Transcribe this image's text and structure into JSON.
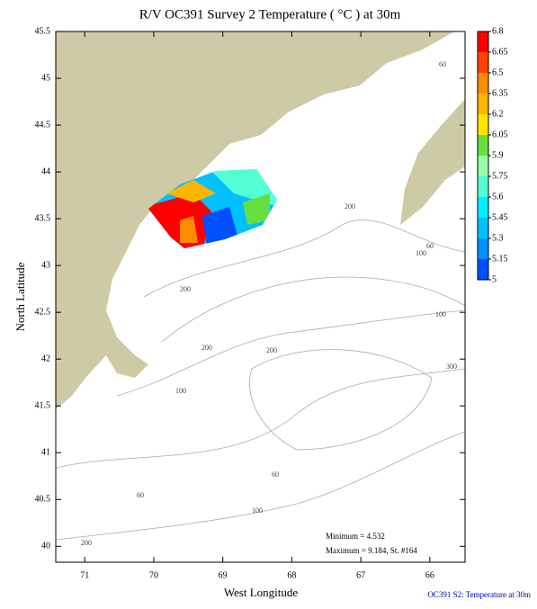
{
  "chart_data": {
    "type": "map",
    "title": "R/V OC391 Survey 2 Temperature ( °C ) at 30m",
    "xlabel": "West Longitude",
    "ylabel": "North Latitude",
    "xlim": [
      71.42,
      65.49
    ],
    "xticks": [
      71,
      70,
      69,
      68,
      67,
      66
    ],
    "ylim": [
      39.83,
      45.5
    ],
    "yticks": [
      40,
      40.5,
      41,
      41.5,
      42,
      42.5,
      43,
      43.5,
      44,
      44.5,
      45,
      45.5
    ],
    "colorbar": {
      "ticks": [
        6.8,
        6.65,
        6.5,
        6.35,
        6.2,
        6.05,
        5.9,
        5.75,
        5.6,
        5.45,
        5.3,
        5.15,
        5
      ],
      "colors": [
        "#ff0000",
        "#ff4400",
        "#ff8c00",
        "#ffb400",
        "#ffe600",
        "#66e040",
        "#99ffaa",
        "#55ffd5",
        "#00f0ff",
        "#00c0ff",
        "#0090ff",
        "#0050ff"
      ]
    },
    "contour_labels": [
      "60",
      "200",
      "60",
      "100",
      "200",
      "100",
      "200",
      "300",
      "200",
      "100",
      "60",
      "60",
      "100",
      "200"
    ],
    "minimum": "Minimum = 4.532",
    "maximum": "Maximum = 9.184, St. #164",
    "footer": "OC391  S2: Temperature at 30m"
  }
}
